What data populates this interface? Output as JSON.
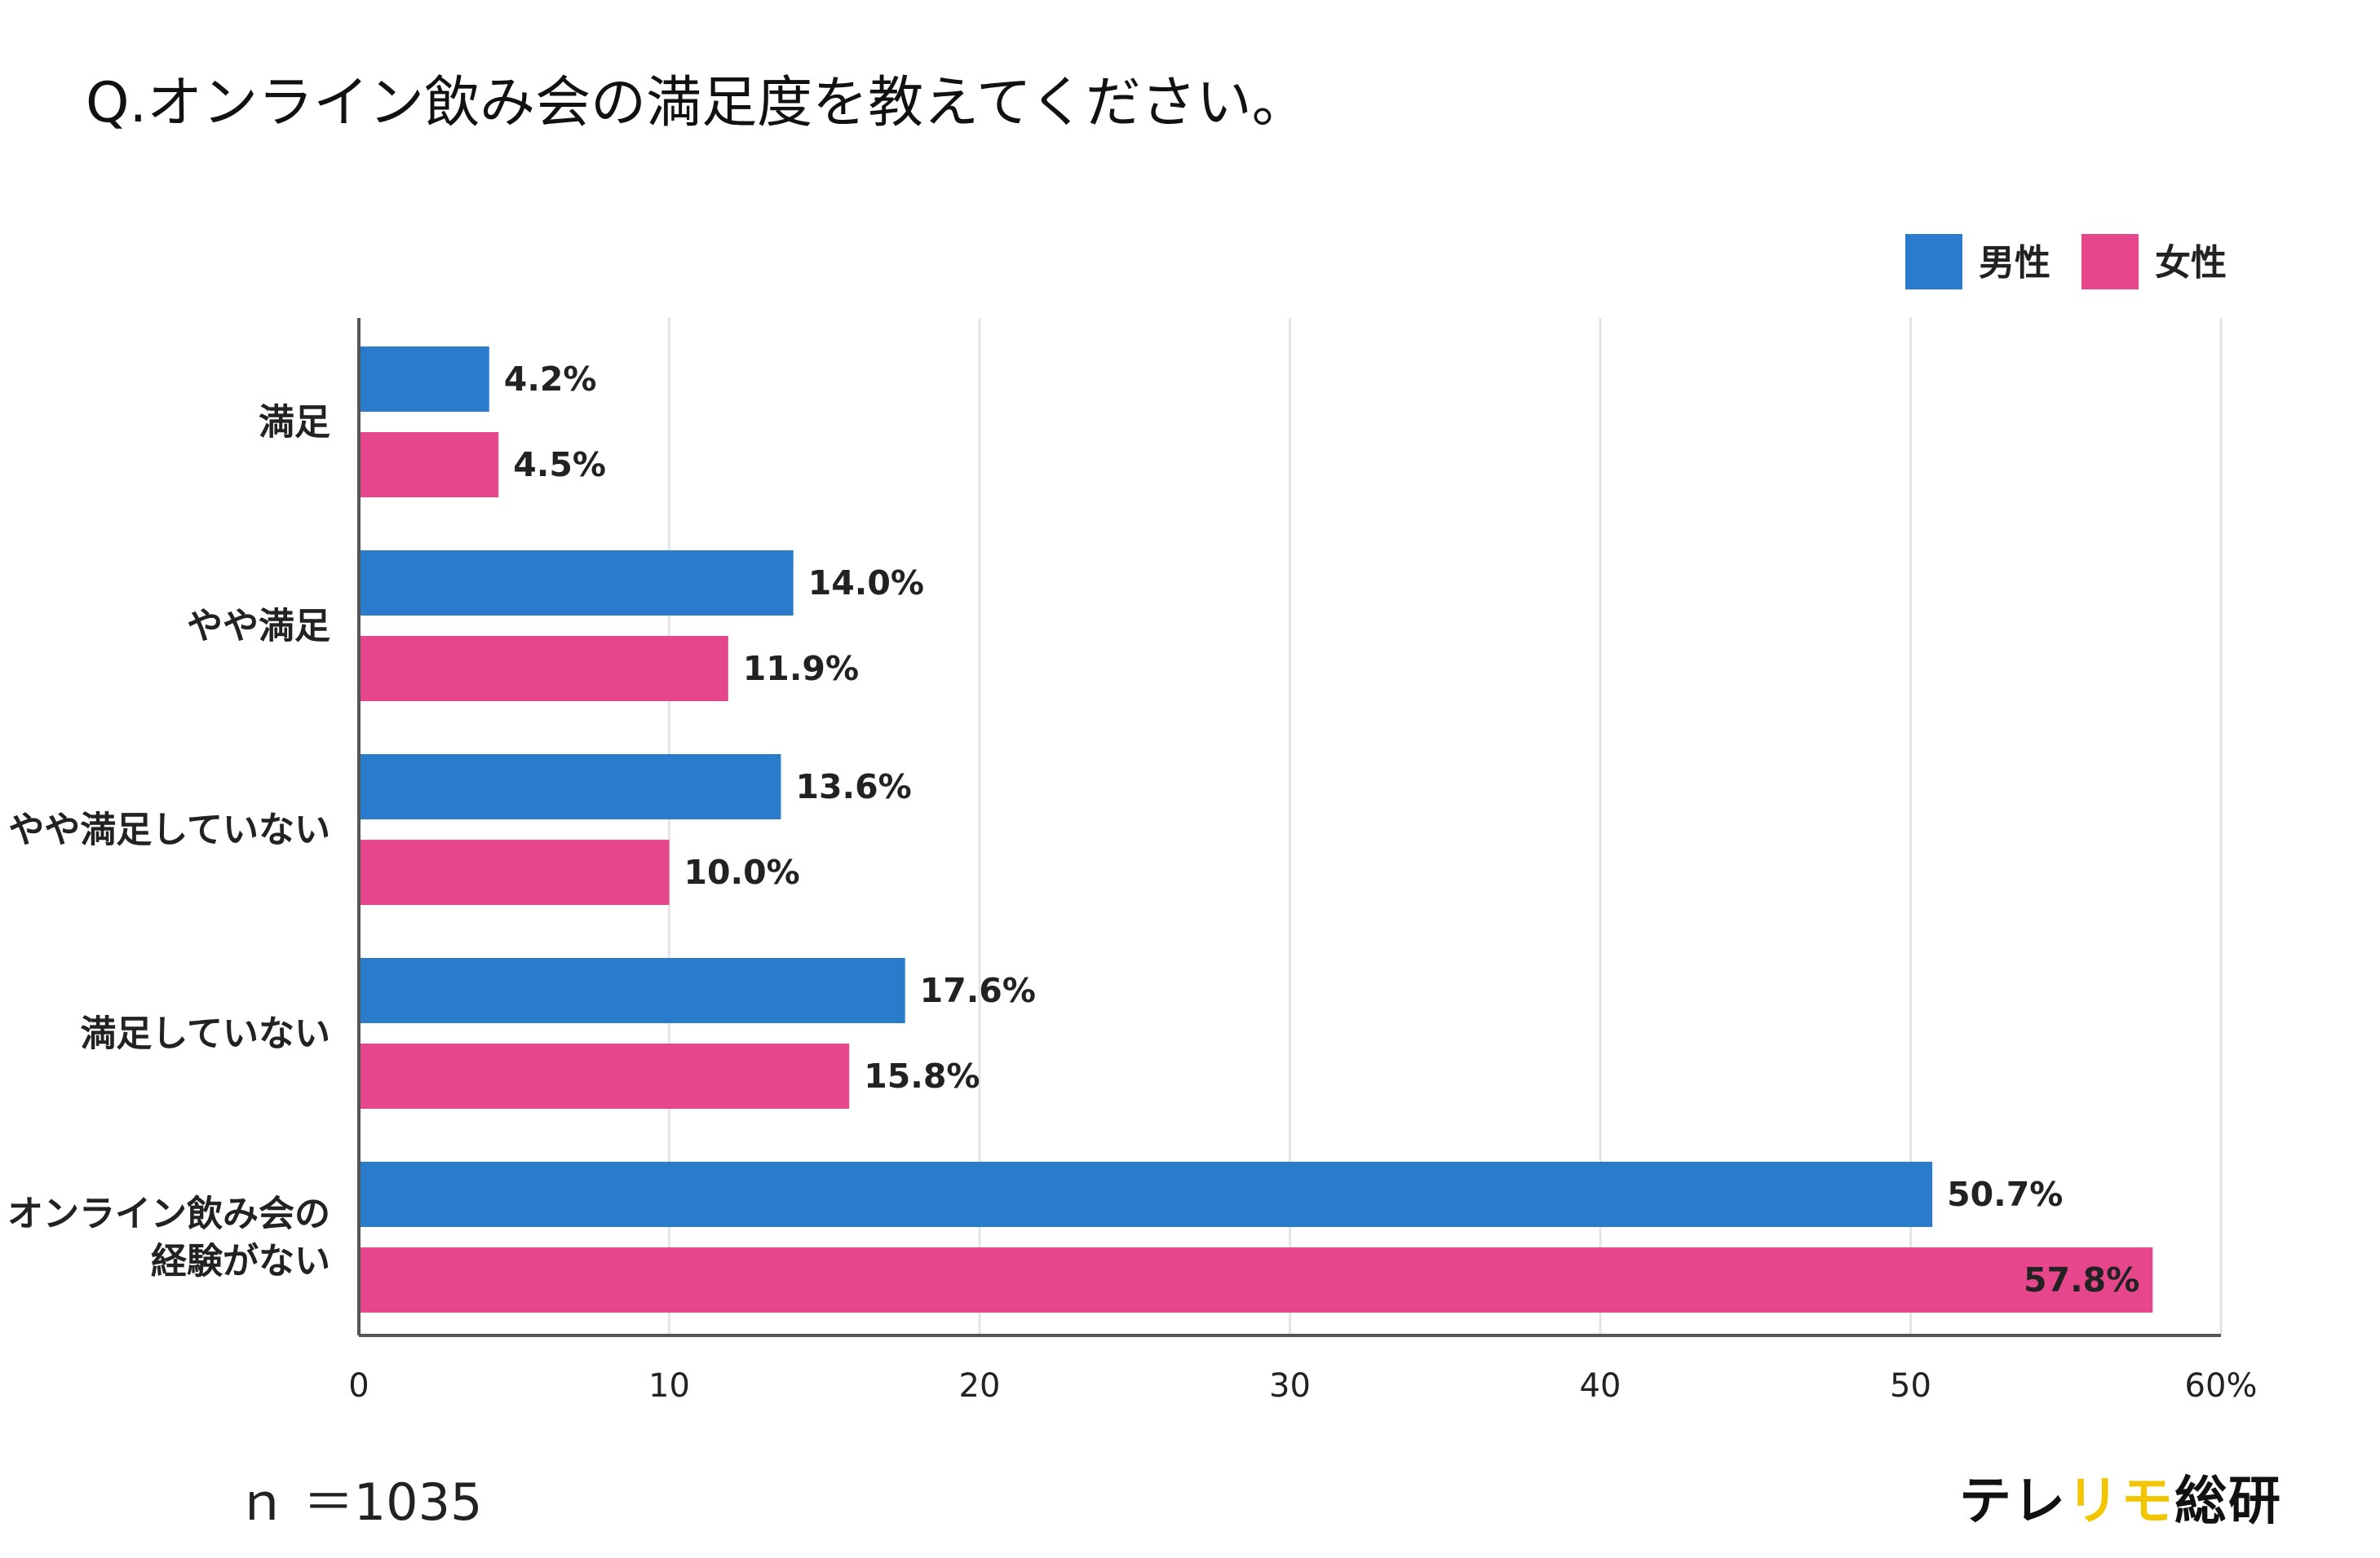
{
  "title": "Q.オンライン飲み会の満足度を教えてください。",
  "sample_size": "ｎ ＝1035",
  "brand": {
    "part1": "テレ",
    "part2": "リモ",
    "part3": "総研",
    "color_dark": "#111111",
    "color_accent": "#f2c500"
  },
  "chart_data": {
    "type": "bar",
    "orientation": "horizontal",
    "categories": [
      "満足",
      "やや満足",
      "やや満足していない",
      "満足していない",
      "オンライン飲み会の経験がない"
    ],
    "category_lines": [
      [
        "満足"
      ],
      [
        "やや満足"
      ],
      [
        "やや満足していない"
      ],
      [
        "満足していない"
      ],
      [
        "オンライン飲み会の",
        "経験がない"
      ]
    ],
    "series": [
      {
        "name": "男性",
        "color": "#2a7bcc",
        "values": [
          4.2,
          14.0,
          13.6,
          17.6,
          50.7
        ],
        "labels": [
          "4.2%",
          "14.0%",
          "13.6%",
          "17.6%",
          "50.7%"
        ]
      },
      {
        "name": "女性",
        "color": "#e6478c",
        "values": [
          4.5,
          11.9,
          10.0,
          15.8,
          57.8
        ],
        "labels": [
          "4.5%",
          "11.9%",
          "10.0%",
          "15.8%",
          "57.8%"
        ]
      }
    ],
    "xlim": [
      0,
      60
    ],
    "xticks": [
      0,
      10,
      20,
      30,
      40,
      50,
      60
    ],
    "xtick_labels": [
      "0",
      "10",
      "20",
      "30",
      "40",
      "50",
      "60%"
    ],
    "grid": true,
    "legend_position": "top-right"
  }
}
